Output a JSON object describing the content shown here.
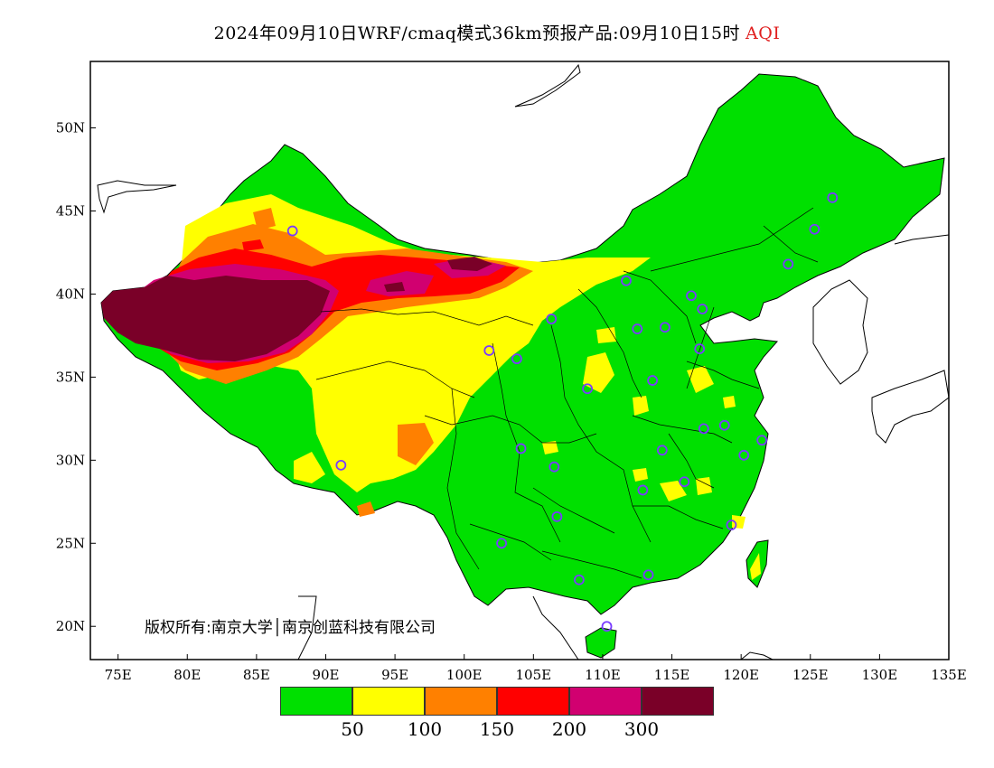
{
  "header": {
    "title": "2024年09月10日WRF/cmaq模式36km预报产品:09月10日15时",
    "pollutant": "AQI"
  },
  "copyright": "版权所有:南京大学│南京创蓝科技有限公司",
  "axes": {
    "x_ticks": [
      "75E",
      "80E",
      "85E",
      "90E",
      "95E",
      "100E",
      "105E",
      "110E",
      "115E",
      "120E",
      "125E",
      "130E",
      "135E"
    ],
    "y_ticks": [
      "20N",
      "25N",
      "30N",
      "35N",
      "40N",
      "45N",
      "50N"
    ]
  },
  "legend": {
    "colors": [
      "#00e000",
      "#ffff00",
      "#ff8000",
      "#ff0000",
      "#d10070",
      "#7a0028"
    ],
    "labels": [
      "50",
      "100",
      "150",
      "200",
      "300"
    ]
  },
  "chart_data": {
    "type": "heatmap",
    "title": "2024年09月10日WRF/cmaq模式36km预报产品:09月10日15时 AQI",
    "xlim": [
      73,
      135
    ],
    "ylim": [
      18,
      54
    ],
    "scale_breaks": [
      50,
      100,
      150,
      200,
      300
    ],
    "map": "China"
  },
  "stations": [
    [
      87.6,
      43.8
    ],
    [
      91.1,
      29.7
    ],
    [
      101.8,
      36.6
    ],
    [
      103.8,
      36.1
    ],
    [
      106.3,
      38.5
    ],
    [
      108.9,
      34.3
    ],
    [
      104.1,
      30.7
    ],
    [
      106.5,
      29.6
    ],
    [
      106.7,
      26.6
    ],
    [
      102.7,
      25.0
    ],
    [
      108.3,
      22.8
    ],
    [
      110.3,
      20.0
    ],
    [
      113.3,
      23.1
    ],
    [
      112.9,
      28.2
    ],
    [
      114.3,
      30.6
    ],
    [
      115.9,
      28.7
    ],
    [
      117.3,
      31.9
    ],
    [
      118.8,
      32.1
    ],
    [
      120.2,
      30.3
    ],
    [
      121.5,
      31.2
    ],
    [
      119.3,
      26.1
    ],
    [
      113.6,
      34.8
    ],
    [
      117.0,
      36.7
    ],
    [
      114.5,
      38.0
    ],
    [
      112.5,
      37.9
    ],
    [
      111.7,
      40.8
    ],
    [
      116.4,
      39.9
    ],
    [
      117.2,
      39.1
    ],
    [
      123.4,
      41.8
    ],
    [
      125.3,
      43.9
    ],
    [
      126.6,
      45.8
    ]
  ]
}
